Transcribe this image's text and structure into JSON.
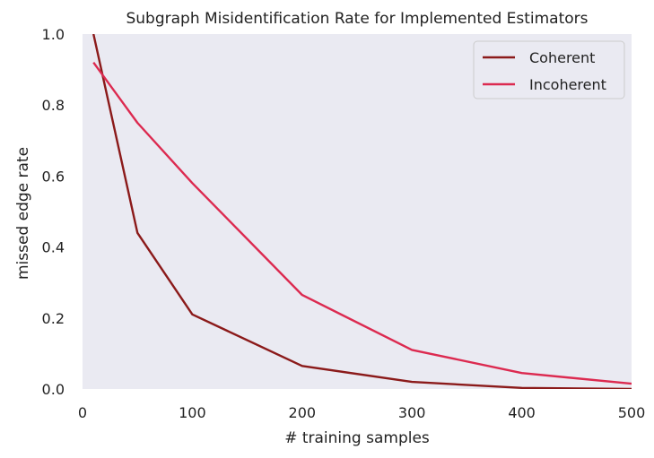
{
  "chart_data": {
    "type": "line",
    "title": "Subgraph Misidentification Rate for Implemented Estimators",
    "xlabel": "# training samples",
    "ylabel": "missed edge rate",
    "xlim": [
      0,
      500
    ],
    "ylim": [
      0,
      1
    ],
    "xticks": [
      "0",
      "100",
      "200",
      "300",
      "400",
      "500"
    ],
    "yticks": [
      "0.0",
      "0.2",
      "0.4",
      "0.6",
      "0.8",
      "1.0"
    ],
    "xtick_values": [
      0,
      100,
      200,
      300,
      400,
      500
    ],
    "ytick_values": [
      0,
      0.2,
      0.4,
      0.6,
      0.8,
      1.0
    ],
    "grid": false,
    "background": "#eaeaf2",
    "legend_position": "top-right",
    "series": [
      {
        "name": "Coherent",
        "color": "#8b1a1a",
        "x": [
          10,
          50,
          100,
          200,
          300,
          400,
          500
        ],
        "y": [
          1.0,
          0.44,
          0.21,
          0.065,
          0.02,
          0.003,
          0.0
        ]
      },
      {
        "name": "Incoherent",
        "color": "#dc2a50",
        "x": [
          10,
          50,
          100,
          200,
          300,
          400,
          500
        ],
        "y": [
          0.92,
          0.75,
          0.58,
          0.265,
          0.11,
          0.045,
          0.015
        ]
      }
    ]
  }
}
